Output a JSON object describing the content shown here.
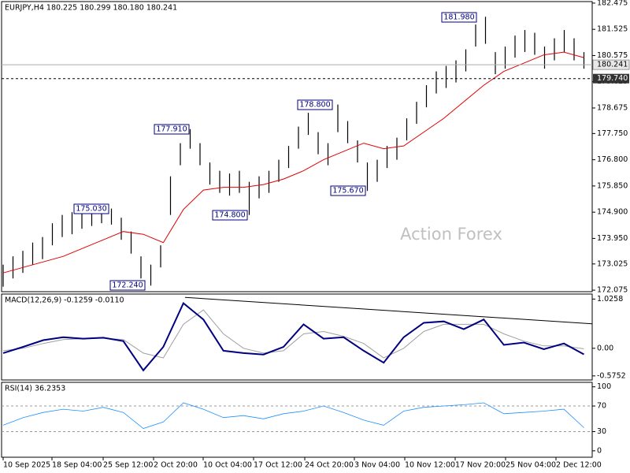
{
  "chart_data": {
    "type": "ohlc",
    "title": "EURJPY,H4  180.225 180.299 180.180 180.241",
    "xlabels": [
      "10 Sep 2025",
      "18 Sep 04:00",
      "25 Sep 12:00",
      "2 Oct 20:00",
      "10 Oct 04:00",
      "17 Oct 12:00",
      "24 Oct 20:00",
      "3 Nov 04:00",
      "10 Nov 12:00",
      "17 Nov 20:00",
      "25 Nov 04:00",
      "2 Dec 12:00"
    ],
    "price": {
      "ylim": [
        172.02,
        182.53
      ],
      "yticks": [
        182.475,
        181.525,
        180.575,
        179.625,
        178.675,
        {
          "value": 177.75,
          "label": "177.750"
        },
        {
          "value": 176.8,
          "label": "176.800"
        },
        {
          "value": 175.85,
          "label": "175.850"
        },
        {
          "value": 174.9,
          "label": "174.900"
        },
        {
          "value": 173.95,
          "label": "173.950"
        },
        173.025,
        172.075
      ],
      "color": "#000000",
      "highs": [
        173.0,
        173.3,
        173.5,
        173.8,
        174.0,
        174.5,
        174.8,
        174.9,
        175.1,
        175.2,
        175.0,
        175.03,
        174.7,
        174.2,
        173.3,
        173.0,
        173.7,
        176.2,
        177.4,
        177.91,
        177.4,
        176.7,
        176.4,
        176.3,
        176.4,
        176.0,
        176.2,
        176.4,
        176.8,
        177.3,
        178.0,
        178.5,
        177.8,
        177.4,
        178.8,
        178.2,
        177.5,
        176.7,
        176.8,
        177.3,
        177.6,
        178.3,
        178.9,
        179.5,
        180.0,
        180.2,
        180.4,
        180.8,
        181.7,
        181.98,
        180.7,
        180.9,
        181.3,
        181.5,
        181.4,
        180.9,
        181.2,
        181.5,
        181.2,
        180.7
      ],
      "lows": [
        172.2,
        172.5,
        172.7,
        173.0,
        173.2,
        173.7,
        174.0,
        174.1,
        174.3,
        174.4,
        174.5,
        174.45,
        173.9,
        173.4,
        172.5,
        172.24,
        172.9,
        174.8,
        176.6,
        177.2,
        176.6,
        175.9,
        175.6,
        175.5,
        175.6,
        174.8,
        175.4,
        175.6,
        176.0,
        176.5,
        177.2,
        177.7,
        177.0,
        176.6,
        177.8,
        177.4,
        176.7,
        175.67,
        176.0,
        176.5,
        176.8,
        177.5,
        178.1,
        178.7,
        179.2,
        179.4,
        179.6,
        180.0,
        180.9,
        181.0,
        179.9,
        180.1,
        180.5,
        180.7,
        180.6,
        180.1,
        180.4,
        180.7,
        180.4,
        180.1
      ],
      "ma": {
        "color": "#e00000",
        "values": [
          172.7,
          172.9,
          173.1,
          173.3,
          173.6,
          173.9,
          174.2,
          174.1,
          173.8,
          175.0,
          175.7,
          175.8,
          175.8,
          175.9,
          176.1,
          176.4,
          176.8,
          177.1,
          177.4,
          177.2,
          177.3,
          177.8,
          178.3,
          178.9,
          179.5,
          180.0,
          180.3,
          180.6,
          180.7,
          180.5
        ]
      },
      "annotations": [
        "181.980",
        "178.800",
        "177.910",
        "175.030",
        "174.800",
        "175.670",
        "172.240"
      ],
      "last_price": 180.241,
      "level": {
        "value": 179.74,
        "label": "179.740"
      },
      "watermark": "Action Forex"
    },
    "macd": {
      "title": "MACD(12,26,9) -0.1259 -0.0110",
      "ylim": [
        -0.66,
        1.13
      ],
      "yticks": [
        1.0258,
        {
          "value": 0,
          "label": "0.00"
        },
        -0.5752
      ],
      "series": [
        {
          "color": "#000080",
          "values": [
            -0.1,
            0.03,
            0.17,
            0.23,
            0.2,
            0.22,
            0.15,
            -0.46,
            0.03,
            0.94,
            0.6,
            -0.05,
            -0.1,
            -0.13,
            0.03,
            0.5,
            0.2,
            0.23,
            -0.05,
            -0.3,
            0.23,
            0.53,
            0.56,
            0.4,
            0.6,
            0.07,
            0.12,
            -0.02,
            0.1,
            -0.1259
          ]
        },
        {
          "color": "#a0a0a0",
          "values": [
            -0.05,
            0.0,
            0.1,
            0.18,
            0.2,
            0.21,
            0.18,
            -0.1,
            -0.2,
            0.5,
            0.8,
            0.3,
            0.0,
            -0.1,
            -0.05,
            0.3,
            0.35,
            0.25,
            0.1,
            -0.2,
            0.0,
            0.35,
            0.5,
            0.5,
            0.5,
            0.3,
            0.15,
            0.05,
            0.05,
            -0.011
          ]
        }
      ],
      "trendline": [
        1.06,
        0.51
      ]
    },
    "rsi": {
      "title": "RSI(14) 36.2353",
      "ylim": [
        -10,
        107
      ],
      "yticks": [
        100,
        70,
        30,
        0
      ],
      "color": "#1e90ff",
      "values": [
        40,
        52,
        60,
        65,
        62,
        68,
        60,
        35,
        45,
        75,
        65,
        52,
        55,
        50,
        58,
        62,
        70,
        60,
        48,
        40,
        62,
        68,
        70,
        72,
        75,
        58,
        60,
        62,
        65,
        36.2353
      ]
    }
  }
}
